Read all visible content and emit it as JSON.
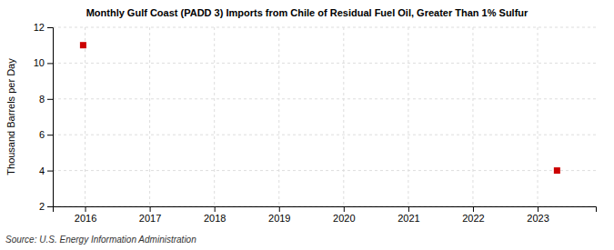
{
  "chart_data": {
    "type": "scatter",
    "title": "Monthly Gulf Coast (PADD 3) Imports from Chile of Residual Fuel Oil, Greater Than 1% Sulfur",
    "ylabel": "Thousand Barrels per Day",
    "source": "Source: U.S. Energy Information Administration",
    "x": [
      2015.97,
      2023.3
    ],
    "values": [
      11.0,
      4.0
    ],
    "color": "#cc0000",
    "marker": "square",
    "xlim": [
      2015.5,
      2023.9
    ],
    "ylim": [
      2,
      12
    ],
    "xticks": [
      2016,
      2017,
      2018,
      2019,
      2020,
      2021,
      2022,
      2023
    ],
    "yticks": [
      2,
      4,
      6,
      8,
      10,
      12
    ],
    "grid": true
  }
}
